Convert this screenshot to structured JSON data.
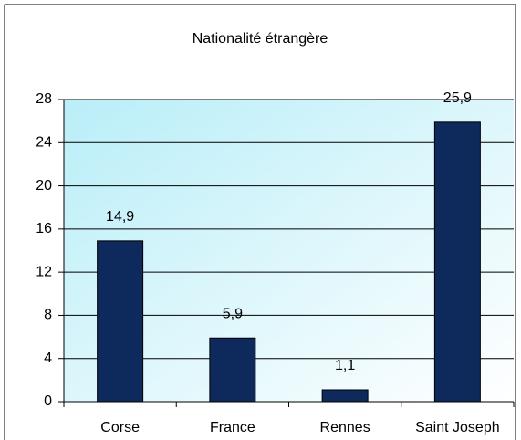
{
  "chart_data": {
    "type": "bar",
    "title": "Nationalité étrangère",
    "categories": [
      "Corse",
      "France",
      "Rennes",
      "Saint Joseph"
    ],
    "values": [
      14.9,
      5.9,
      1.1,
      25.9
    ],
    "value_labels": [
      "14,9",
      "5,9",
      "1,1",
      "25,9"
    ],
    "color": "#0e2a5c",
    "ylim": [
      0,
      28
    ],
    "yticks": [
      0,
      4,
      8,
      12,
      16,
      20,
      24,
      28
    ],
    "grid": true
  }
}
